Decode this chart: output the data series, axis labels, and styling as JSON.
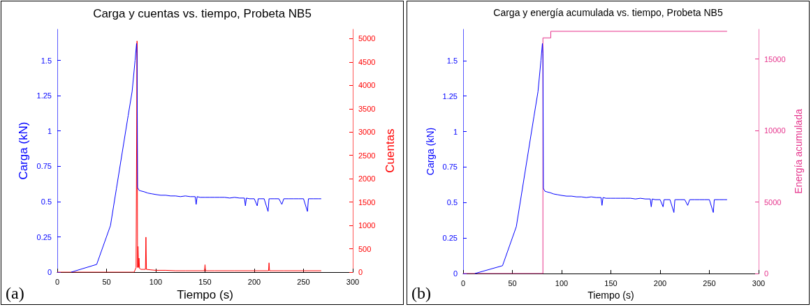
{
  "chart_data": [
    {
      "type": "line",
      "title": "Carga y cuentas vs. tiempo, Probeta NB5",
      "xlabel": "Tiempo (s)",
      "ylabel": "Carga (kN)",
      "y2label": "Cuentas",
      "annotations": [
        "(a)"
      ],
      "grid": false,
      "xlim": [
        0,
        300
      ],
      "xticks": [
        0,
        50,
        100,
        150,
        200,
        250,
        300
      ],
      "ylim": [
        0,
        1.72
      ],
      "yticks": [
        0,
        0.25,
        0.5,
        0.75,
        1,
        1.25,
        1.5
      ],
      "y2lim": [
        0,
        5200
      ],
      "y2ticks": [
        0,
        500,
        1000,
        1500,
        2000,
        2500,
        3000,
        3500,
        4000,
        4500,
        5000
      ],
      "series": [
        {
          "color": "#0000ff",
          "x": [
            14,
            40,
            54,
            60,
            66,
            72,
            76,
            79,
            80.5,
            81,
            81.5,
            83,
            85,
            88,
            92,
            96,
            100,
            105,
            110,
            115,
            120,
            125,
            130,
            135,
            140,
            141,
            142,
            145,
            150,
            155,
            160,
            165,
            170,
            175,
            180,
            185,
            190,
            191,
            192,
            195,
            200,
            203,
            204,
            207,
            210,
            214,
            215,
            216,
            220,
            225,
            228,
            230,
            235,
            240,
            245,
            250,
            254,
            255,
            256,
            260,
            265,
            268
          ],
          "values": [
            0,
            0.055,
            0.33,
            0.59,
            0.85,
            1.11,
            1.28,
            1.5,
            1.62,
            1.55,
            0.6,
            0.58,
            0.575,
            0.57,
            0.56,
            0.555,
            0.55,
            0.545,
            0.545,
            0.54,
            0.54,
            0.535,
            0.54,
            0.535,
            0.535,
            0.48,
            0.535,
            0.53,
            0.53,
            0.53,
            0.53,
            0.53,
            0.53,
            0.525,
            0.53,
            0.525,
            0.525,
            0.47,
            0.525,
            0.52,
            0.52,
            0.47,
            0.52,
            0.52,
            0.52,
            0.43,
            0.52,
            0.52,
            0.52,
            0.52,
            0.48,
            0.52,
            0.52,
            0.52,
            0.52,
            0.52,
            0.43,
            0.52,
            0.52,
            0.52,
            0.52,
            0.52
          ]
        },
        {
          "axis": "y2",
          "color": "#ff0000",
          "x": [
            0,
            78,
            80,
            81,
            81.5,
            82,
            82.5,
            83,
            83.5,
            85,
            89.5,
            90,
            90.5,
            95,
            100,
            110,
            120,
            130,
            149.5,
            150,
            150.5,
            160,
            180,
            200,
            214.5,
            215,
            215.5,
            230,
            250,
            268
          ],
          "values": [
            0,
            0,
            100,
            4950,
            100,
            550,
            100,
            300,
            80,
            60,
            60,
            750,
            60,
            50,
            40,
            40,
            30,
            30,
            30,
            160,
            30,
            30,
            30,
            30,
            30,
            200,
            30,
            30,
            30,
            30
          ]
        }
      ]
    },
    {
      "type": "line",
      "title": "Carga y energía acumulada vs. tiempo, Probeta NB5",
      "xlabel": "Tiempo (s)",
      "ylabel": "Carga (kN)",
      "y2label": "Energía acumulada",
      "annotations": [
        "(b)"
      ],
      "grid": false,
      "xlim": [
        0,
        300
      ],
      "xticks": [
        0,
        50,
        100,
        150,
        200,
        250,
        300
      ],
      "ylim": [
        0,
        1.72
      ],
      "yticks": [
        0,
        0.25,
        0.5,
        0.75,
        1,
        1.25,
        1.5
      ],
      "y2lim": [
        0,
        17080
      ],
      "y2ticks": [
        0,
        5000,
        10000,
        15000
      ],
      "series": [
        {
          "color": "#0000ff",
          "x": [
            12,
            40,
            54,
            60,
            66,
            72,
            76,
            79,
            80.5,
            81,
            81.5,
            83,
            85,
            88,
            92,
            96,
            100,
            105,
            110,
            115,
            120,
            125,
            130,
            135,
            140,
            141,
            142,
            145,
            150,
            155,
            160,
            165,
            170,
            175,
            180,
            185,
            190,
            191,
            192,
            195,
            200,
            203,
            204,
            207,
            210,
            214,
            215,
            216,
            220,
            225,
            228,
            230,
            235,
            240,
            245,
            250,
            254,
            255,
            256,
            260,
            265,
            268
          ],
          "values": [
            0,
            0.055,
            0.33,
            0.59,
            0.85,
            1.11,
            1.28,
            1.5,
            1.62,
            1.55,
            0.6,
            0.58,
            0.575,
            0.57,
            0.56,
            0.555,
            0.55,
            0.545,
            0.545,
            0.54,
            0.54,
            0.535,
            0.54,
            0.535,
            0.535,
            0.48,
            0.535,
            0.53,
            0.53,
            0.53,
            0.53,
            0.53,
            0.53,
            0.525,
            0.53,
            0.525,
            0.525,
            0.47,
            0.525,
            0.52,
            0.52,
            0.47,
            0.52,
            0.52,
            0.52,
            0.43,
            0.52,
            0.52,
            0.52,
            0.52,
            0.48,
            0.52,
            0.52,
            0.52,
            0.52,
            0.52,
            0.43,
            0.52,
            0.52,
            0.52,
            0.52,
            0.52
          ]
        },
        {
          "type": "step",
          "axis": "y2",
          "color": "#e6338c",
          "x": [
            0,
            81,
            89,
            268
          ],
          "values": [
            0,
            16480,
            16940,
            16940
          ]
        }
      ]
    }
  ]
}
